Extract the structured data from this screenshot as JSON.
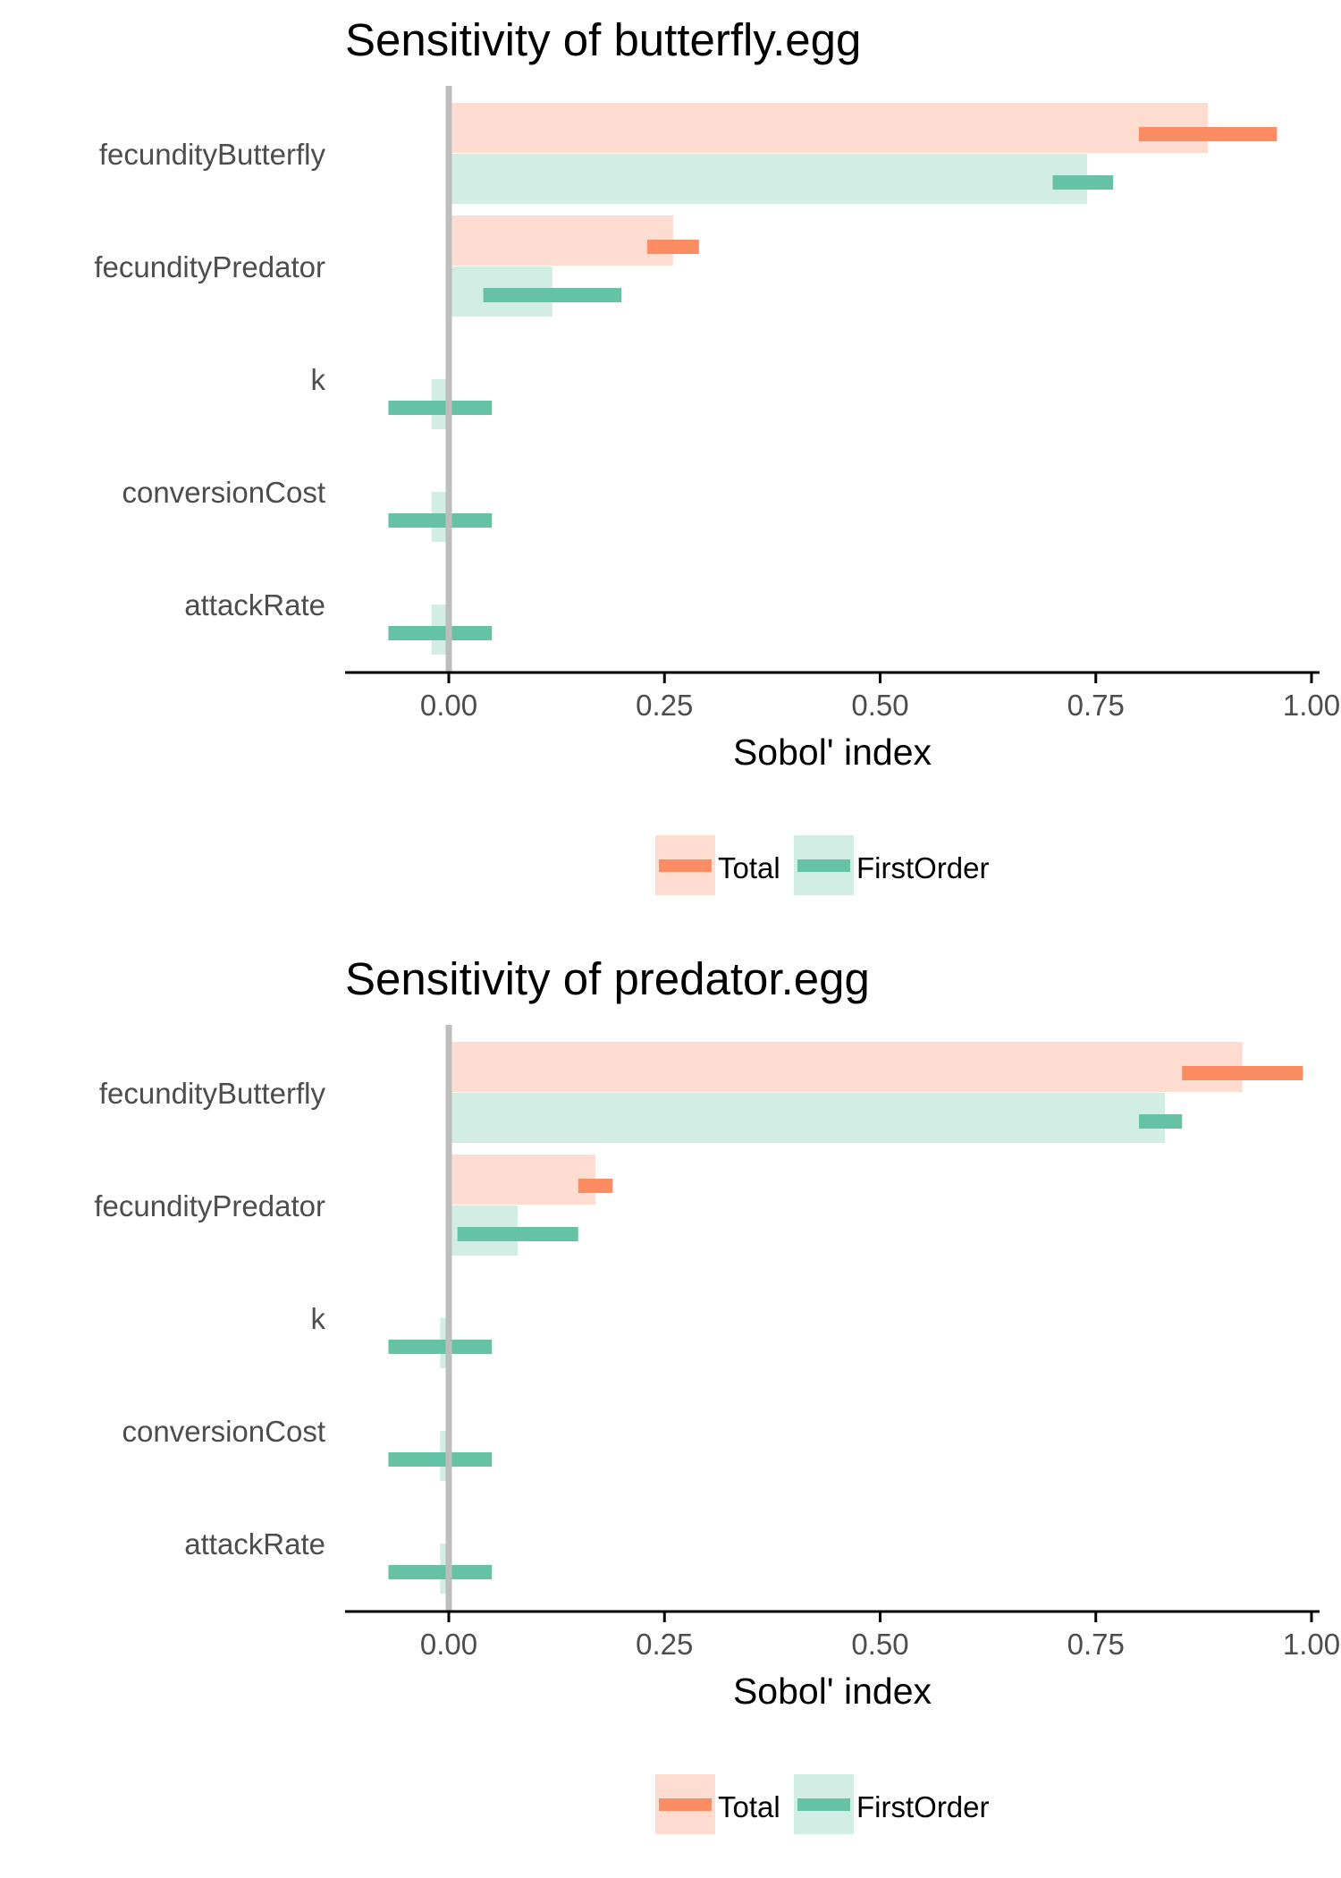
{
  "chart_data": [
    {
      "type": "bar",
      "orientation": "horizontal",
      "title": "Sensitivity of butterfly.egg",
      "xlabel": "Sobol' index",
      "ylabel": "",
      "xlim": [
        -0.12,
        1.0
      ],
      "xticks": [
        "0.00",
        "0.25",
        "0.50",
        "0.75",
        "1.00"
      ],
      "xtick_values": [
        0,
        0.25,
        0.5,
        0.75,
        1.0
      ],
      "categories": [
        "fecundityButterfly",
        "fecundityPredator",
        "k",
        "conversionCost",
        "attackRate"
      ],
      "series": [
        {
          "name": "Total",
          "color": "#fc8d62",
          "values": [
            0.88,
            0.26,
            0.0,
            0.0,
            0.0
          ],
          "ci_low": [
            0.8,
            0.23,
            null,
            null,
            null
          ],
          "ci_high": [
            0.96,
            0.29,
            null,
            null,
            null
          ]
        },
        {
          "name": "FirstOrder",
          "color": "#66c2a5",
          "values": [
            0.74,
            0.12,
            -0.02,
            -0.02,
            -0.02
          ],
          "ci_low": [
            0.7,
            0.04,
            -0.07,
            -0.07,
            -0.07
          ],
          "ci_high": [
            0.77,
            0.2,
            0.05,
            0.05,
            0.05
          ]
        }
      ],
      "grid": false,
      "legend_position": "bottom"
    },
    {
      "type": "bar",
      "orientation": "horizontal",
      "title": "Sensitivity of predator.egg",
      "xlabel": "Sobol' index",
      "ylabel": "",
      "xlim": [
        -0.12,
        1.0
      ],
      "xticks": [
        "0.00",
        "0.25",
        "0.50",
        "0.75",
        "1.00"
      ],
      "xtick_values": [
        0,
        0.25,
        0.5,
        0.75,
        1.0
      ],
      "categories": [
        "fecundityButterfly",
        "fecundityPredator",
        "k",
        "conversionCost",
        "attackRate"
      ],
      "series": [
        {
          "name": "Total",
          "color": "#fc8d62",
          "values": [
            0.92,
            0.17,
            0.0,
            0.0,
            0.0
          ],
          "ci_low": [
            0.85,
            0.15,
            null,
            null,
            null
          ],
          "ci_high": [
            0.99,
            0.19,
            null,
            null,
            null
          ]
        },
        {
          "name": "FirstOrder",
          "color": "#66c2a5",
          "values": [
            0.83,
            0.08,
            -0.01,
            -0.01,
            -0.01
          ],
          "ci_low": [
            0.8,
            0.01,
            -0.07,
            -0.07,
            -0.07
          ],
          "ci_high": [
            0.85,
            0.15,
            0.05,
            0.05,
            0.05
          ]
        }
      ],
      "grid": false,
      "legend_position": "bottom"
    }
  ]
}
